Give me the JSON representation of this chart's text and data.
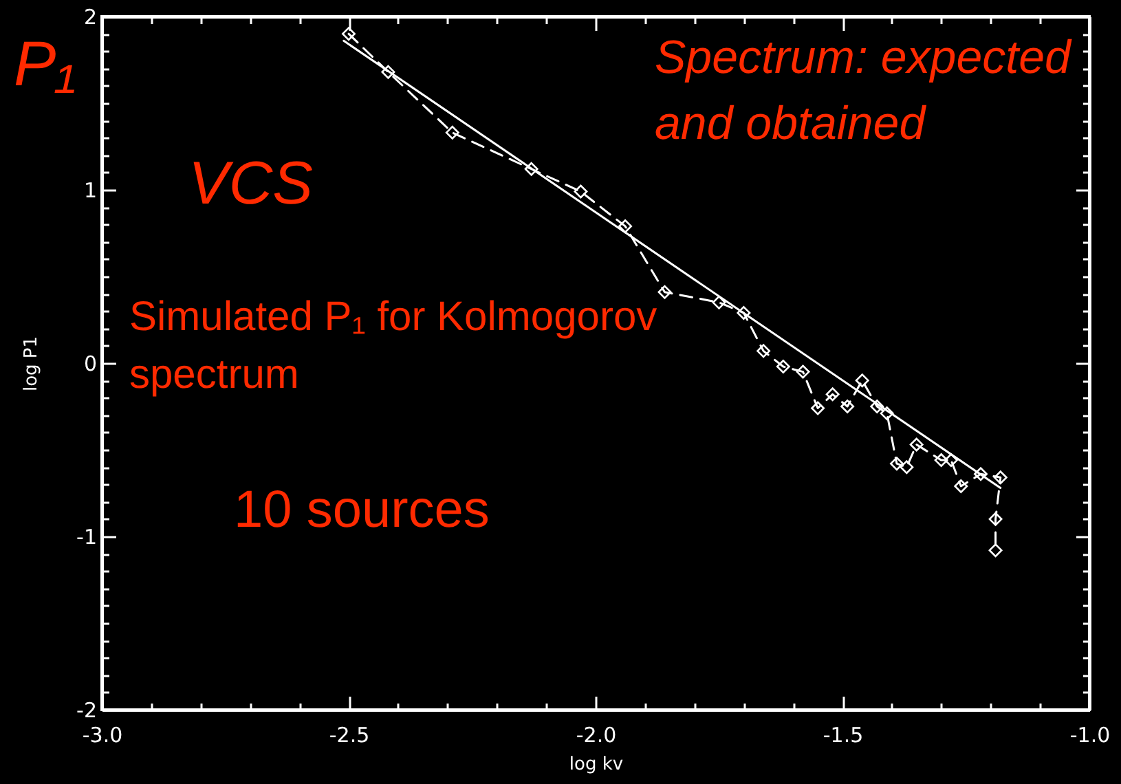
{
  "chart_data": {
    "type": "line",
    "xlabel": "log kv",
    "ylabel": "log P1",
    "annotations": [
      "P₁",
      "Spectrum: expected\nand obtained",
      "VCS",
      "Simulated P₁ for Kolmogorov\nspectrum",
      "10 sources"
    ],
    "series": [
      {
        "color": "#ffffff",
        "marker": "diamond",
        "line_style": "dashed",
        "x": [
          -2.5,
          -2.42,
          -2.29,
          -2.13,
          -2.03,
          -1.94,
          -1.86,
          -1.75,
          -1.7,
          -1.66,
          -1.62,
          -1.58,
          -1.55,
          -1.52,
          -1.49,
          -1.46,
          -1.43,
          -1.41,
          -1.39,
          -1.37,
          -1.35,
          -1.3,
          -1.28,
          -1.26,
          -1.22,
          -1.18,
          -1.19,
          -1.19
        ],
        "values": [
          1.9,
          1.68,
          1.33,
          1.12,
          0.99,
          0.79,
          0.41,
          0.35,
          0.29,
          0.07,
          -0.02,
          -0.05,
          -0.26,
          -0.18,
          -0.25,
          -0.1,
          -0.25,
          -0.29,
          -0.58,
          -0.6,
          -0.47,
          -0.56,
          -0.56,
          -0.71,
          -0.64,
          -0.66,
          -0.9,
          -1.08
        ]
      },
      {
        "color": "#ffffff",
        "marker": "none",
        "line_style": "solid",
        "x": [
          -2.51,
          -1.18
        ],
        "values": [
          1.86,
          -0.72
        ]
      }
    ],
    "xlim": [
      -3,
      -1
    ],
    "ylim": [
      -2,
      2
    ],
    "xticks": [
      {
        "value": -3,
        "label": "-3.0"
      },
      {
        "value": -2.9,
        "label": null
      },
      {
        "value": -2.8,
        "label": null
      },
      {
        "value": -2.7,
        "label": null
      },
      {
        "value": -2.6,
        "label": null
      },
      {
        "value": -2.5,
        "label": "-2.5"
      },
      {
        "value": -2.4,
        "label": null
      },
      {
        "value": -2.3,
        "label": null
      },
      {
        "value": -2.2,
        "label": null
      },
      {
        "value": -2.1,
        "label": null
      },
      {
        "value": -2,
        "label": "-2.0"
      },
      {
        "value": -1.9,
        "label": null
      },
      {
        "value": -1.8,
        "label": null
      },
      {
        "value": -1.7,
        "label": null
      },
      {
        "value": -1.6,
        "label": null
      },
      {
        "value": -1.5,
        "label": "-1.5"
      },
      {
        "value": -1.4,
        "label": null
      },
      {
        "value": -1.3,
        "label": null
      },
      {
        "value": -1.2,
        "label": null
      },
      {
        "value": -1.1,
        "label": null
      },
      {
        "value": -1,
        "label": "-1.0"
      }
    ],
    "yticks": [
      -2,
      {
        "value": -1.9,
        "label": null
      },
      {
        "value": -1.8,
        "label": null
      },
      {
        "value": -1.7,
        "label": null
      },
      {
        "value": -1.6,
        "label": null
      },
      {
        "value": -1.5,
        "label": null
      },
      {
        "value": -1.4,
        "label": null
      },
      {
        "value": -1.3,
        "label": null
      },
      {
        "value": -1.2,
        "label": null
      },
      {
        "value": -1.1,
        "label": null
      },
      -1,
      {
        "value": -0.9,
        "label": null
      },
      {
        "value": -0.8,
        "label": null
      },
      {
        "value": -0.7,
        "label": null
      },
      {
        "value": -0.6,
        "label": null
      },
      {
        "value": -0.5,
        "label": null
      },
      {
        "value": -0.4,
        "label": null
      },
      {
        "value": -0.3,
        "label": null
      },
      {
        "value": -0.2,
        "label": null
      },
      {
        "value": -0.1,
        "label": null
      },
      0,
      {
        "value": 0.1,
        "label": null
      },
      {
        "value": 0.2,
        "label": null
      },
      {
        "value": 0.3,
        "label": null
      },
      {
        "value": 0.4,
        "label": null
      },
      {
        "value": 0.5,
        "label": null
      },
      {
        "value": 0.6,
        "label": null
      },
      {
        "value": 0.7,
        "label": null
      },
      {
        "value": 0.8,
        "label": null
      },
      {
        "value": 0.9,
        "label": null
      },
      1,
      {
        "value": 1.1,
        "label": null
      },
      {
        "value": 1.2,
        "label": null
      },
      {
        "value": 1.3,
        "label": null
      },
      {
        "value": 1.4,
        "label": null
      },
      {
        "value": 1.5,
        "label": null
      },
      {
        "value": 1.6,
        "label": null
      },
      {
        "value": 1.7,
        "label": null
      },
      {
        "value": 1.8,
        "label": null
      },
      {
        "value": 1.9,
        "label": null
      },
      2
    ]
  }
}
